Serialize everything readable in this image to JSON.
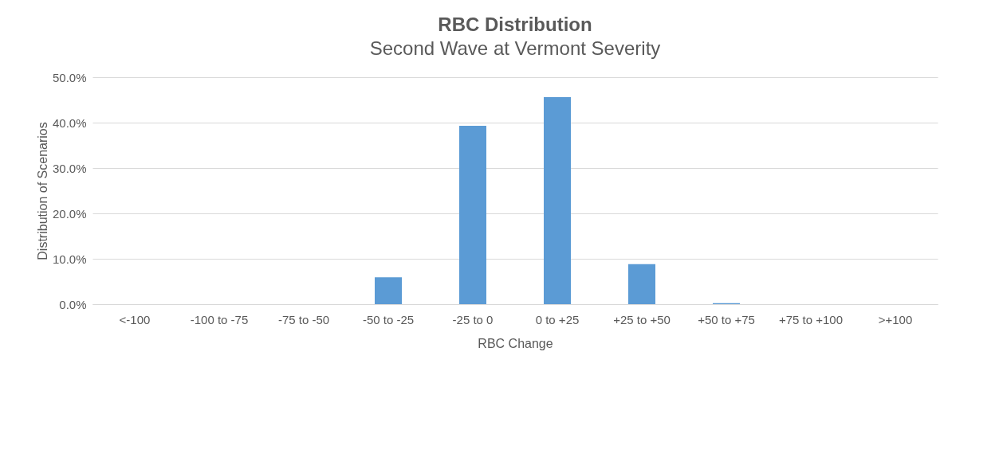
{
  "chart_data": {
    "type": "bar",
    "title": "RBC Distribution",
    "subtitle": "Second Wave at Vermont Severity",
    "xlabel": "RBC Change",
    "ylabel": "Distribution of Scenarios",
    "categories": [
      "<-100",
      "-100 to -75",
      "-75 to -50",
      "-50 to -25",
      "-25 to 0",
      "0 to +25",
      "+25 to +50",
      "+50 to +75",
      "+75 to +100",
      ">+100"
    ],
    "series": [
      {
        "color": "#5b9bd5",
        "values": [
          0,
          0,
          0,
          5.9,
          39.3,
          45.6,
          8.8,
          0.2,
          0,
          0
        ]
      }
    ],
    "ylim": [
      0,
      50
    ],
    "yticks": [
      {
        "value": 0,
        "label": "0.0%"
      },
      {
        "value": 10,
        "label": "10.0%"
      },
      {
        "value": 20,
        "label": "20.0%"
      },
      {
        "value": 30,
        "label": "30.0%"
      },
      {
        "value": 40,
        "label": "40.0%"
      },
      {
        "value": 50,
        "label": "50.0%"
      }
    ],
    "grid": "y"
  }
}
